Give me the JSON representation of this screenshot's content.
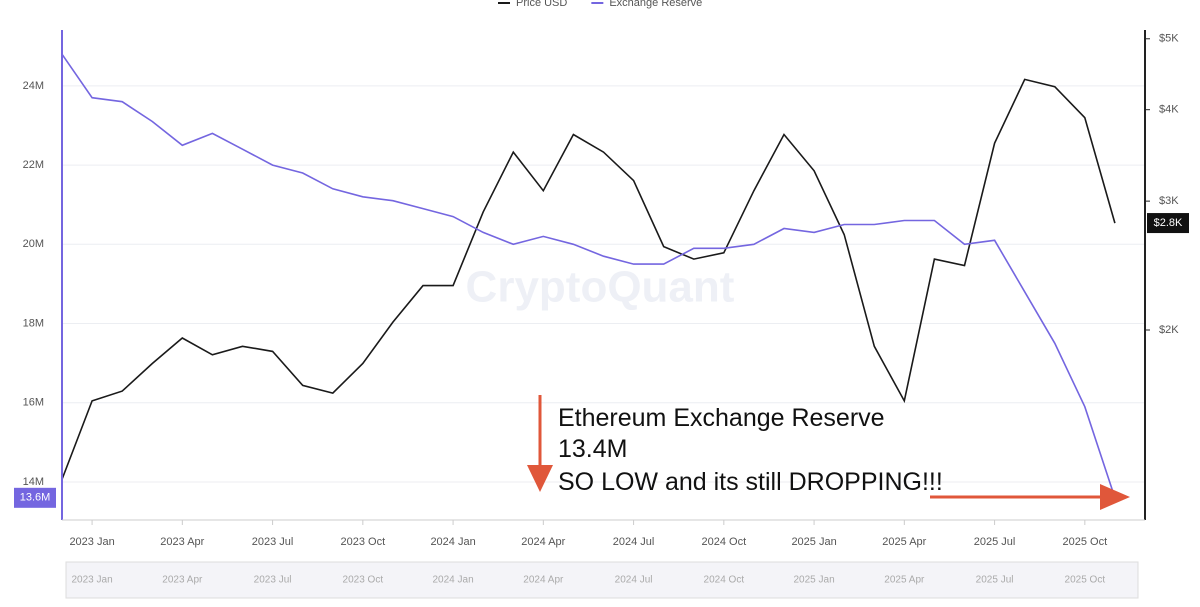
{
  "chart_data": {
    "type": "line",
    "watermark": "CryptoQuant",
    "annotations": [
      "Ethereum Exchange Reserve",
      "13.4M",
      "SO LOW and its still DROPPING!!!"
    ],
    "x": [
      "2022-12",
      "2023-01",
      "2023-02",
      "2023-03",
      "2023-04",
      "2023-05",
      "2023-06",
      "2023-07",
      "2023-08",
      "2023-09",
      "2023-10",
      "2023-11",
      "2023-12",
      "2024-01",
      "2024-02",
      "2024-03",
      "2024-04",
      "2024-05",
      "2024-06",
      "2024-07",
      "2024-08",
      "2024-09",
      "2024-10",
      "2024-11",
      "2024-12",
      "2025-01",
      "2025-02",
      "2025-03",
      "2025-04",
      "2025-05",
      "2025-06",
      "2025-07",
      "2025-08",
      "2025-09",
      "2025-10",
      "2025-11"
    ],
    "xlim": [
      "2022-12",
      "2025-12"
    ],
    "xticks": [
      {
        "value": "2023-01",
        "label": "2023 Jan"
      },
      {
        "value": "2023-04",
        "label": "2023 Apr"
      },
      {
        "value": "2023-07",
        "label": "2023 Jul"
      },
      {
        "value": "2023-10",
        "label": "2023 Oct"
      },
      {
        "value": "2024-01",
        "label": "2024 Jan"
      },
      {
        "value": "2024-04",
        "label": "2024 Apr"
      },
      {
        "value": "2024-07",
        "label": "2024 Jul"
      },
      {
        "value": "2024-10",
        "label": "2024 Oct"
      },
      {
        "value": "2025-01",
        "label": "2025 Jan"
      },
      {
        "value": "2025-04",
        "label": "2025 Apr"
      },
      {
        "value": "2025-07",
        "label": "2025 Jul"
      },
      {
        "value": "2025-10",
        "label": "2025 Oct"
      }
    ],
    "ylim": [
      13.04,
      25.41
    ],
    "yticks": [
      {
        "value": 14,
        "label": "14M"
      },
      {
        "value": 16,
        "label": "16M"
      },
      {
        "value": 18,
        "label": "18M"
      },
      {
        "value": 20,
        "label": "20M"
      },
      {
        "value": 22,
        "label": "22M"
      },
      {
        "value": 24,
        "label": "24M"
      }
    ],
    "y2lim": [
      1100,
      5140
    ],
    "y2scale": "log",
    "y2ticks": [
      {
        "value": 2000,
        "label": "$2K"
      },
      {
        "value": 3000,
        "label": "$3K"
      },
      {
        "value": 4000,
        "label": "$4K"
      },
      {
        "value": 5000,
        "label": "$5K"
      }
    ],
    "grid": true,
    "series": [
      {
        "name": "Price USD",
        "color": "#1a1a1a",
        "axis": "y2",
        "end_label": "$2.8K",
        "values": [
          1250,
          1600,
          1650,
          1800,
          1950,
          1850,
          1900,
          1870,
          1680,
          1640,
          1800,
          2050,
          2300,
          2300,
          2900,
          3500,
          3100,
          3700,
          3500,
          3200,
          2600,
          2500,
          2550,
          3100,
          3700,
          3300,
          2700,
          1900,
          1600,
          2500,
          2450,
          3600,
          4400,
          4300,
          3900,
          2800
        ]
      },
      {
        "name": "Exchange Reserve",
        "color": "#7466e0",
        "end_label": "13.6M",
        "values": [
          24.8,
          23.7,
          23.6,
          23.1,
          22.5,
          22.8,
          22.4,
          22.0,
          21.8,
          21.4,
          21.2,
          21.1,
          20.9,
          20.7,
          20.3,
          20.0,
          20.2,
          20.0,
          19.7,
          19.5,
          19.5,
          19.9,
          19.9,
          20.0,
          20.4,
          20.3,
          20.5,
          20.5,
          20.6,
          20.6,
          20.0,
          20.1,
          18.8,
          17.5,
          15.9,
          13.6
        ]
      }
    ]
  }
}
